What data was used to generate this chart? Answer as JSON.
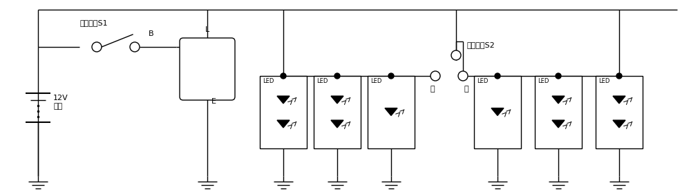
{
  "bg_color": "#ffffff",
  "line_color": "#000000",
  "figsize": [
    10.0,
    2.81
  ],
  "dpi": 100,
  "labels": {
    "s1": "电源开关S1",
    "battery_v": "12V",
    "battery_label": "电源",
    "relay_l": "L",
    "relay_b": "B",
    "relay_e": "E",
    "s2": "电源开关S2",
    "left": "左",
    "right": "右",
    "led": "LED"
  }
}
